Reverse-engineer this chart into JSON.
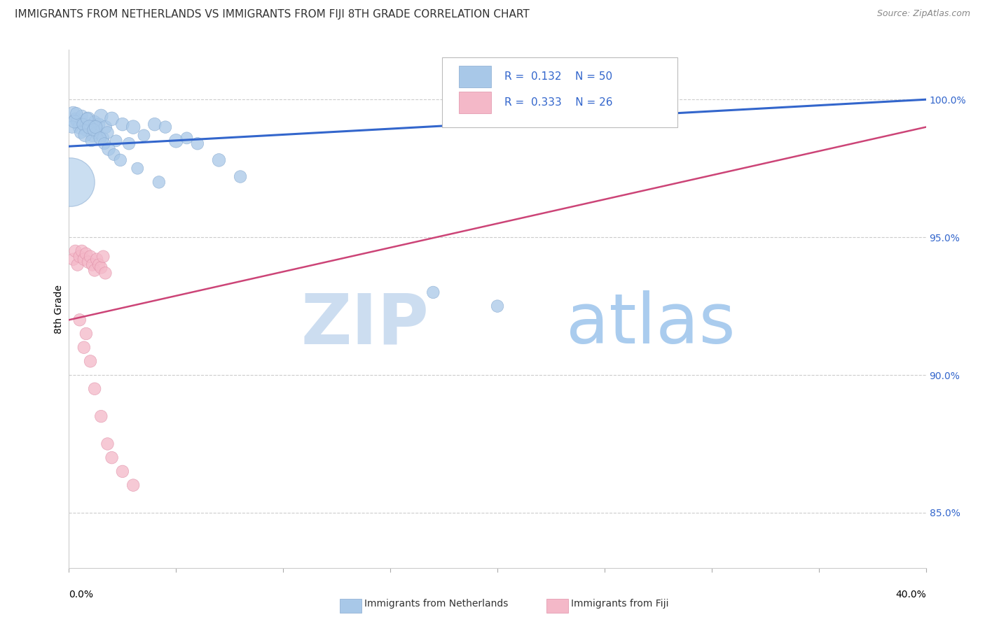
{
  "title": "IMMIGRANTS FROM NETHERLANDS VS IMMIGRANTS FROM FIJI 8TH GRADE CORRELATION CHART",
  "source": "Source: ZipAtlas.com",
  "ylabel": "8th Grade",
  "xlim": [
    0.0,
    40.0
  ],
  "ylim": [
    83.0,
    101.8
  ],
  "yticks": [
    85.0,
    90.0,
    95.0,
    100.0
  ],
  "ytick_labels": [
    "85.0%",
    "90.0%",
    "95.0%",
    "100.0%"
  ],
  "blue_R": 0.132,
  "blue_N": 50,
  "pink_R": 0.333,
  "pink_N": 26,
  "blue_color": "#a8c8e8",
  "blue_edge_color": "#88aad0",
  "blue_line_color": "#3366cc",
  "pink_color": "#f4b8c8",
  "pink_edge_color": "#e090a8",
  "pink_line_color": "#cc4477",
  "blue_legend_label": "Immigrants from Netherlands",
  "pink_legend_label": "Immigrants from Fiji",
  "blue_scatter_x": [
    0.2,
    0.3,
    0.4,
    0.5,
    0.6,
    0.7,
    0.8,
    0.9,
    1.0,
    1.1,
    1.2,
    1.3,
    1.4,
    1.5,
    1.6,
    1.7,
    1.8,
    2.0,
    2.2,
    2.5,
    2.8,
    3.0,
    3.5,
    4.0,
    4.5,
    5.0,
    5.5,
    6.0,
    7.0,
    8.0,
    0.15,
    0.25,
    0.35,
    0.55,
    0.65,
    0.75,
    0.85,
    0.95,
    1.05,
    1.15,
    1.25,
    1.45,
    1.65,
    1.85,
    2.1,
    2.4,
    3.2,
    4.2,
    17.0,
    20.0
  ],
  "blue_scatter_y": [
    99.5,
    99.3,
    99.2,
    99.0,
    99.4,
    99.1,
    98.9,
    99.3,
    99.0,
    98.7,
    99.2,
    98.8,
    99.1,
    99.4,
    98.6,
    99.0,
    98.8,
    99.3,
    98.5,
    99.1,
    98.4,
    99.0,
    98.7,
    99.1,
    99.0,
    98.5,
    98.6,
    98.4,
    97.8,
    97.2,
    99.0,
    99.2,
    99.5,
    98.8,
    99.1,
    98.7,
    99.3,
    99.0,
    98.5,
    98.9,
    99.0,
    98.6,
    98.4,
    98.2,
    98.0,
    97.8,
    97.5,
    97.0,
    93.0,
    92.5
  ],
  "blue_scatter_size": [
    200,
    150,
    180,
    200,
    160,
    150,
    180,
    200,
    160,
    180,
    150,
    180,
    160,
    200,
    150,
    180,
    160,
    200,
    150,
    180,
    160,
    200,
    150,
    180,
    160,
    200,
    150,
    160,
    180,
    160,
    160,
    180,
    150,
    160,
    150,
    180,
    160,
    200,
    150,
    160,
    180,
    160,
    150,
    180,
    150,
    160,
    150,
    160,
    160,
    160
  ],
  "blue_large_dot_x": 0.05,
  "blue_large_dot_y": 97.0,
  "blue_large_dot_size": 2500,
  "pink_scatter_x": [
    0.2,
    0.3,
    0.4,
    0.5,
    0.6,
    0.7,
    0.8,
    0.9,
    1.0,
    1.1,
    1.2,
    1.3,
    1.4,
    1.5,
    1.6,
    1.7,
    0.8,
    1.0,
    1.2,
    1.5,
    1.8,
    2.0,
    2.5,
    3.0,
    0.5,
    0.7
  ],
  "pink_scatter_y": [
    94.2,
    94.5,
    94.0,
    94.3,
    94.5,
    94.2,
    94.4,
    94.1,
    94.3,
    94.0,
    93.8,
    94.2,
    94.0,
    93.9,
    94.3,
    93.7,
    91.5,
    90.5,
    89.5,
    88.5,
    87.5,
    87.0,
    86.5,
    86.0,
    92.0,
    91.0
  ],
  "pink_scatter_size": [
    160,
    160,
    160,
    160,
    160,
    160,
    160,
    160,
    160,
    160,
    160,
    160,
    160,
    160,
    160,
    160,
    160,
    160,
    160,
    160,
    160,
    160,
    160,
    160,
    160,
    160
  ],
  "blue_trend_x": [
    0.0,
    40.0
  ],
  "blue_trend_y": [
    98.3,
    100.0
  ],
  "pink_trend_x": [
    0.0,
    40.0
  ],
  "pink_trend_y": [
    92.0,
    99.0
  ]
}
